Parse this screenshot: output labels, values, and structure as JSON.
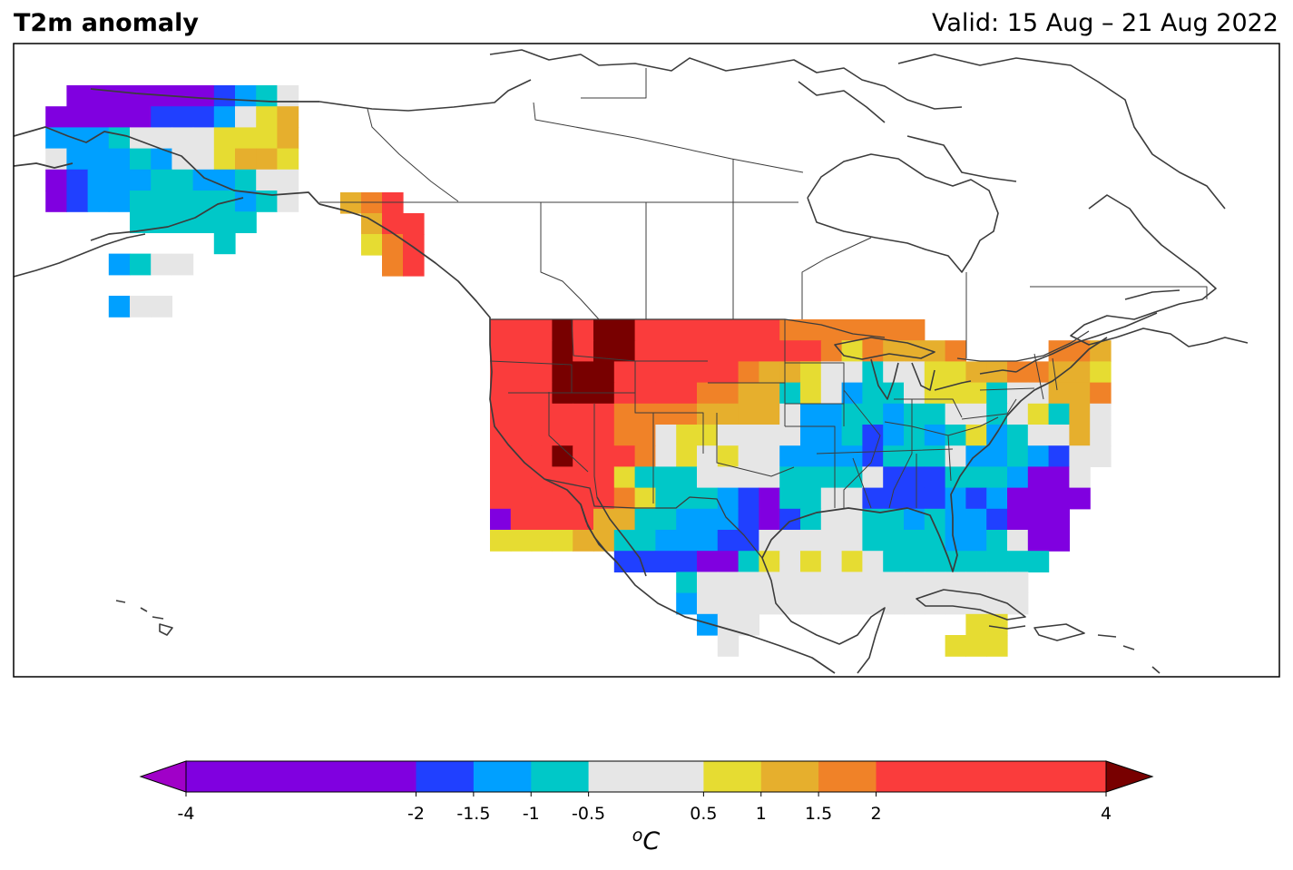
{
  "header": {
    "title": "T2m anomaly",
    "valid": "Valid: 15 Aug – 21 Aug 2022"
  },
  "colorbar": {
    "unit": "°C",
    "unit_base": "o",
    "unit_letter": "C",
    "extend": "both",
    "bounds": [
      -4,
      -2,
      -1.5,
      -1,
      -0.5,
      0.5,
      1,
      1.5,
      2,
      4
    ],
    "tick_labels": [
      "-4",
      "-2",
      "-1.5",
      "-1",
      "-0.5",
      "0.5",
      "1",
      "1.5",
      "2",
      "4"
    ],
    "colors": [
      "#8000e0",
      "#2040ff",
      "#00a0ff",
      "#00c8c8",
      "#e6e6e6",
      "#e6dc32",
      "#e6af2d",
      "#f08228",
      "#fa3c3c"
    ],
    "under_color": "#a000c8",
    "over_color": "#780000"
  },
  "palette": {
    "V": "#8000e0",
    "B": "#2040ff",
    "S": "#00a0ff",
    "T": "#00c8c8",
    "W": "#e6e6e6",
    "Y": "#e6dc32",
    "G": "#e6af2d",
    "O": "#f08228",
    "R": "#fa3c3c",
    "D": "#780000",
    "coast": "#3c3c3c",
    "border": "#3c3c3c"
  },
  "chart_data": {
    "type": "heatmap",
    "title": "T2m anomaly",
    "subtitle": "Valid: 15 Aug – 21 Aug 2022",
    "units": "°C",
    "legend_key": {
      "V": "< -2",
      "B": "-2 to -1.5",
      "S": "-1.5 to -1",
      "T": "-1 to -0.5",
      "W": "-0.5 to 0.5",
      "Y": "0.5 to 1",
      "G": "1 to 1.5",
      "O": "1.5 to 2",
      "R": "2 to 4",
      "D": "> 4"
    },
    "regions": [
      {
        "name": "Alaska",
        "rows": [
          "..VVVVVVVBSTW.",
          ".VVVVVBBBSWYG.",
          ".SSSTWWWWYYYG.",
          ".WSSSTSWWYGGY.",
          ".VBSSSTTSSTWW.",
          ".VBSSTTTTTSTW.",
          ".....TTTTTT...",
          ".........T....",
          "....STWW......",
          "..............",
          "....SWW......."
        ]
      },
      {
        "name": "Southeast Alaska",
        "rows": [
          "GOR.",
          ".GRR",
          ".YOR",
          "..OR"
        ]
      },
      {
        "name": "Contiguous United States",
        "rows": [
          "RRRDRDDRRRRRRROOOOOOO.........",
          "RRRDRDDRRRRRRRRROYOGGGO....OOG",
          "RRRDDDRRRRRROGGYWWTWWYYGGOOGGY",
          "RRRDDDRRRROOGGTYWSTTWYYYTWWGGO",
          "RRRRRROOOOGGGGWSSTTSTTWWTWYTGW",
          "RRRRRROOWYYWWWWSSTBSTSTYSTWWGW",
          "RRRDRRROWYWYWWSSSSBTTTWSSTSBWW",
          "RRRRRRYTTTWWWWTTTTWBBBTTTSVVW.",
          "RRRRRROYTTTSBVTTWWBBBBSBSVVVV.",
          "VRRRRGGTTSSSBVBTWWTTSTSSBVVV..",
          "YYYYGGTTSSSBBWWWWWTTTTSSTWVV..",
          "......BBBBVVTYWYWYWTTTTTTTT...",
          ".........TWWWWWWWWWWWWWWWW....",
          ".........SWWWWWWWWWWWWWWWW....",
          "..........SWW..........YY.....",
          "...........W..........YYY....."
        ]
      }
    ]
  }
}
